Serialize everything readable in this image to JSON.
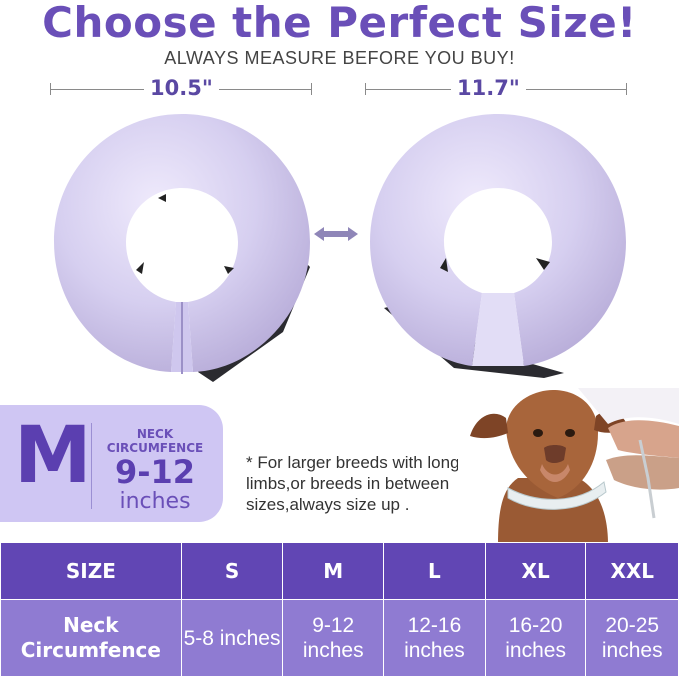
{
  "title": "Choose the Perfect Size!",
  "subtitle": "ALWAYS MEASURE BEFORE YOU BUY!",
  "measurements": {
    "left": "10.5\"",
    "right": "11.7\""
  },
  "badge": {
    "size_letter": "M",
    "neck_label": "NECK CIRCUMFENCE",
    "range": "9-12",
    "unit": "inches"
  },
  "note": "* For larger breeds with longer limbs,or breeds in between sizes,always size up .",
  "colors": {
    "accent": "#6a4fb8",
    "table_header": "#6146b4",
    "table_row": "#8f7bd2",
    "badge_bg": "#cfc6f3",
    "collar": "#d6cff0"
  },
  "size_table": {
    "header": [
      "SIZE",
      "S",
      "M",
      "L",
      "XL",
      "XXL"
    ],
    "row_label": "Neck Circumfence",
    "row_values": [
      "5-8 inches",
      "9-12 inches",
      "12-16 inches",
      "16-20 inches",
      "20-25 inches"
    ]
  }
}
